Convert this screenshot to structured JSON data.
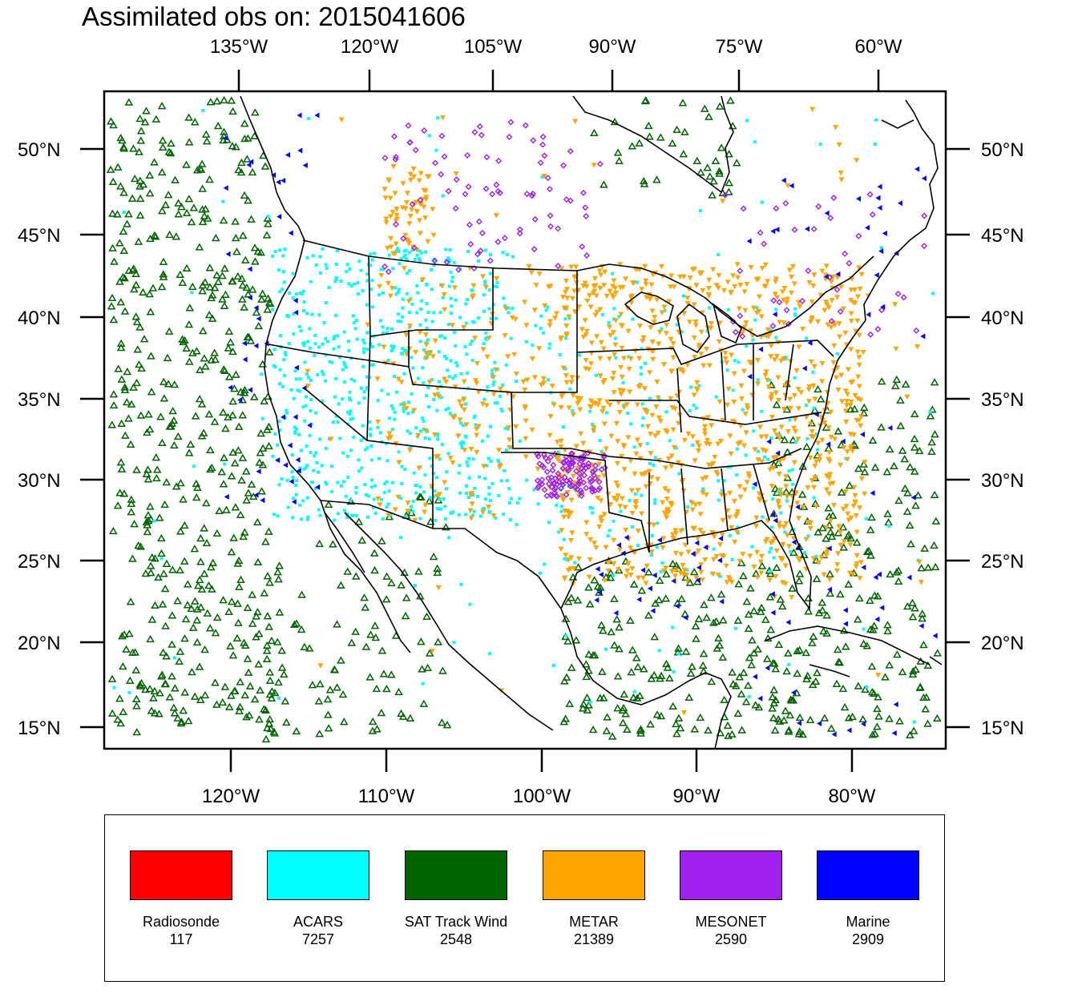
{
  "title": "Assimilated obs on: 2015041606",
  "top_lon_labels": [
    "135°W",
    "120°W",
    "105°W",
    "90°W",
    "75°W",
    "60°W"
  ],
  "bottom_lon_labels": [
    "120°W",
    "110°W",
    "100°W",
    "90°W",
    "80°W"
  ],
  "lat_labels": [
    "50°N",
    "45°N",
    "40°N",
    "35°N",
    "30°N",
    "25°N",
    "20°N",
    "15°N"
  ],
  "legend": [
    {
      "name": "Radiosonde",
      "count": "117",
      "color": "#ff0000"
    },
    {
      "name": "ACARS",
      "count": "7257",
      "color": "#00ffff"
    },
    {
      "name": "SAT Track Wind",
      "count": "2548",
      "color": "#006400"
    },
    {
      "name": "METAR",
      "count": "21389",
      "color": "#ffa500"
    },
    {
      "name": "MESONET",
      "count": "2590",
      "color": "#a020f0"
    },
    {
      "name": "Marine",
      "count": "2909",
      "color": "#0000ff"
    }
  ],
  "colors": {
    "acars": "#00ffff",
    "sat_track_wind": "#006400",
    "metar": "#ffa500",
    "mesonet": "#a020f0",
    "marine": "#0000ff",
    "coastline": "#000000"
  }
}
